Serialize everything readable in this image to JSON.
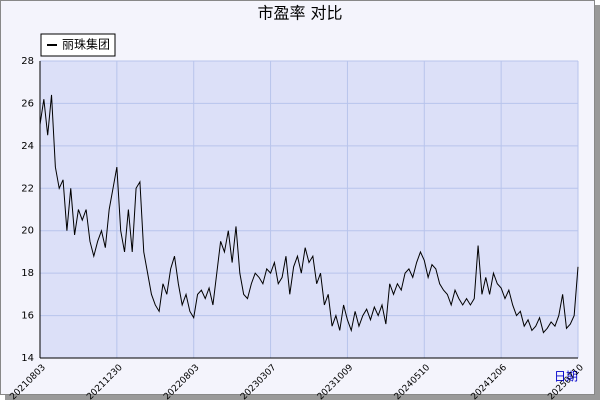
{
  "chart_data": {
    "type": "line",
    "title": "市盈率  对比",
    "x_axis_label": "日期",
    "series": [
      {
        "name": "丽珠集团",
        "color": "#000000",
        "values": [
          25,
          26.2,
          24.5,
          26.4,
          23,
          22,
          22.4,
          20,
          22,
          19.8,
          21,
          20.5,
          21,
          19.5,
          18.8,
          19.5,
          20,
          19.2,
          21,
          22,
          23,
          20,
          19,
          21,
          19,
          22,
          22.3,
          19,
          18,
          17,
          16.5,
          16.2,
          17.5,
          17,
          18.2,
          18.8,
          17.5,
          16.5,
          17,
          16.2,
          15.9,
          17,
          17.2,
          16.8,
          17.3,
          16.5,
          18,
          19.5,
          19,
          20,
          18.5,
          20.2,
          18,
          17,
          16.8,
          17.5,
          18,
          17.8,
          17.5,
          18.2,
          18,
          18.5,
          17.5,
          17.8,
          18.8,
          17,
          18.3,
          18.8,
          18,
          19.2,
          18.5,
          18.8,
          17.5,
          18,
          16.5,
          17,
          15.5,
          16,
          15.3,
          16.5,
          15.8,
          15.3,
          16.2,
          15.5,
          16,
          16.3,
          15.8,
          16.4,
          16,
          16.5,
          15.6,
          17.5,
          17,
          17.5,
          17.2,
          18,
          18.2,
          17.8,
          18.5,
          19,
          18.6,
          17.8,
          18.4,
          18.2,
          17.5,
          17.2,
          17,
          16.5,
          17.2,
          16.8,
          16.5,
          16.8,
          16.5,
          16.8,
          19.3,
          17,
          17.8,
          17,
          18,
          17.5,
          17.3,
          16.8,
          17.2,
          16.5,
          16,
          16.2,
          15.5,
          15.8,
          15.3,
          15.5,
          15.9,
          15.2,
          15.4,
          15.7,
          15.5,
          16,
          17,
          15.4,
          15.6,
          16,
          18.3
        ]
      }
    ],
    "xlim": [
      0,
      140
    ],
    "xticks": [
      {
        "value": 0,
        "label": "20210803"
      },
      {
        "value": 20,
        "label": "20211230"
      },
      {
        "value": 40,
        "label": "20220803"
      },
      {
        "value": 60,
        "label": "20230307"
      },
      {
        "value": 80,
        "label": "20231009"
      },
      {
        "value": 100,
        "label": "20240510"
      },
      {
        "value": 120,
        "label": "20241206"
      },
      {
        "value": 140,
        "label": "20250710"
      }
    ],
    "ylim": [
      14,
      28
    ],
    "yticks": [
      14,
      16,
      18,
      20,
      22,
      24,
      26,
      28
    ],
    "grid": true,
    "legend_position": "top-left"
  }
}
